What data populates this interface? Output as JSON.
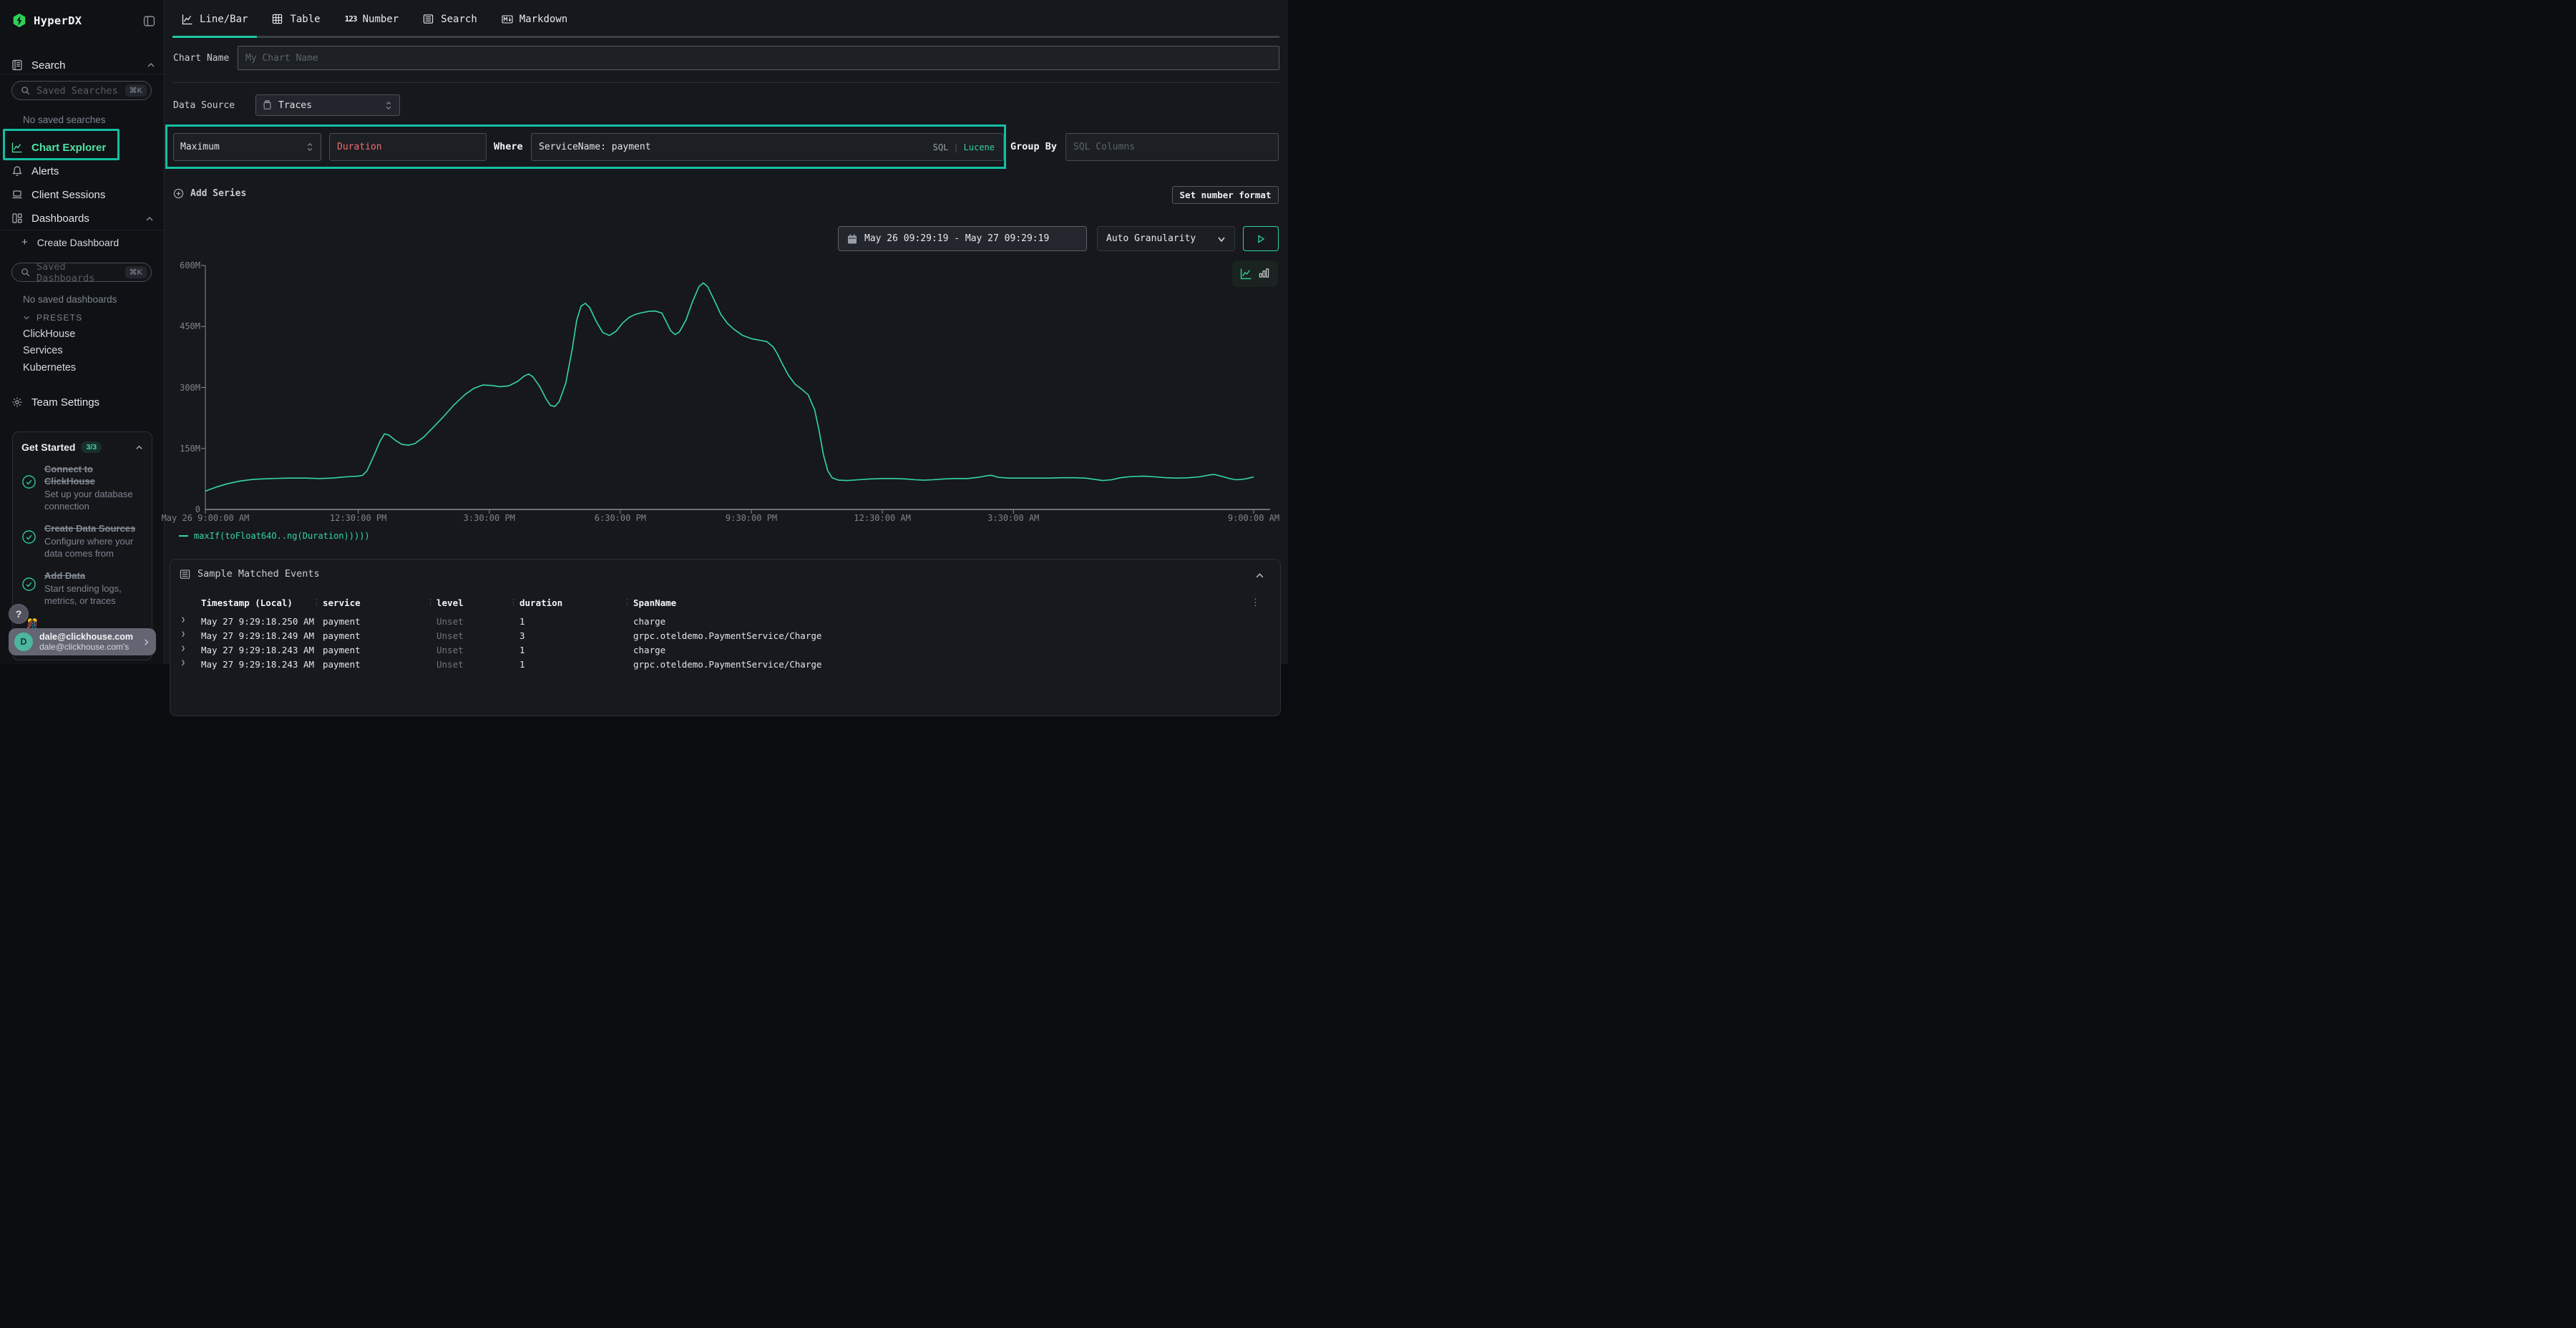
{
  "app": {
    "name": "HyperDX"
  },
  "sidebar": {
    "search_section": "Search",
    "saved_searches_placeholder": "Saved Searches",
    "saved_searches_shortcut": "⌘K",
    "no_saved_searches": "No saved searches",
    "nav": [
      {
        "label": "Chart Explorer",
        "icon": "line-chart-icon",
        "active": true
      },
      {
        "label": "Alerts",
        "icon": "bell-icon",
        "active": false
      },
      {
        "label": "Client Sessions",
        "icon": "laptop-icon",
        "active": false
      },
      {
        "label": "Dashboards",
        "icon": "dashboard-icon",
        "active": false,
        "expanded": true
      }
    ],
    "create_dashboard": "Create Dashboard",
    "saved_dashboards_placeholder": "Saved Dashboards",
    "saved_dashboards_shortcut": "⌘K",
    "no_saved_dashboards": "No saved dashboards",
    "presets_label": "PRESETS",
    "presets": [
      "ClickHouse",
      "Services",
      "Kubernetes"
    ],
    "team_settings": "Team Settings",
    "get_started": {
      "title": "Get Started",
      "badge": "3/3",
      "items": [
        {
          "title": "Connect to ClickHouse",
          "desc": "Set up your database connection",
          "done": true
        },
        {
          "title": "Create Data Sources",
          "desc": "Configure where your data comes from",
          "done": true
        },
        {
          "title": "Add Data",
          "desc": "Start sending logs, metrics, or traces",
          "done": true
        }
      ]
    },
    "help_label": "?",
    "confetti": "🎊",
    "user": {
      "initial": "D",
      "email": "dale@clickhouse.com",
      "subtitle": "dale@clickhouse.com's"
    }
  },
  "tabs": [
    {
      "label": "Line/Bar",
      "icon": "line-chart-icon",
      "active": true
    },
    {
      "label": "Table",
      "icon": "table-icon",
      "active": false
    },
    {
      "label": "Number",
      "icon": "number-icon",
      "active": false
    },
    {
      "label": "Search",
      "icon": "list-icon",
      "active": false
    },
    {
      "label": "Markdown",
      "icon": "markdown-icon",
      "active": false
    }
  ],
  "chart_form": {
    "chart_name_label": "Chart Name",
    "chart_name_placeholder": "My Chart Name",
    "data_source_label": "Data Source",
    "data_source_value": "Traces",
    "aggregation_value": "Maximum",
    "field_value": "Duration",
    "where_label": "Where",
    "where_value": "ServiceName: payment",
    "sql_toggle": "SQL",
    "lucene_toggle": "Lucene",
    "group_by_label": "Group By",
    "group_by_placeholder": "SQL Columns",
    "add_series_label": "Add Series",
    "set_number_format_label": "Set number format"
  },
  "controls": {
    "date_range": "May 26 09:29:19 - May 27 09:29:19",
    "granularity": "Auto Granularity"
  },
  "chart_data": {
    "type": "line",
    "title": "",
    "grid": false,
    "legend_position": "bottom-left",
    "ylim": [
      0,
      600
    ],
    "y_unit_suffix": "M",
    "y_ticks": [
      {
        "value": 0,
        "label": "0"
      },
      {
        "value": 150,
        "label": "150M"
      },
      {
        "value": 300,
        "label": "300M"
      },
      {
        "value": 450,
        "label": "450M"
      },
      {
        "value": 600,
        "label": "600M"
      }
    ],
    "x_range_hours": [
      0,
      24
    ],
    "x_ticks": [
      {
        "hour": 0,
        "label": "May 26 9:00:00 AM"
      },
      {
        "hour": 3.5,
        "label": "12:30:00 PM"
      },
      {
        "hour": 6.5,
        "label": "3:30:00 PM"
      },
      {
        "hour": 9.5,
        "label": "6:30:00 PM"
      },
      {
        "hour": 12.5,
        "label": "9:30:00 PM"
      },
      {
        "hour": 15.5,
        "label": "12:30:00 AM"
      },
      {
        "hour": 18.5,
        "label": "3:30:00 AM"
      },
      {
        "hour": 24,
        "label": "9:00:00 AM"
      }
    ],
    "series": [
      {
        "name": "maxIf(toFloat64O..ng(Duration)))))",
        "color": "#34d7a2",
        "points_hour_valueM": [
          [
            0,
            45
          ],
          [
            0.25,
            55
          ],
          [
            0.5,
            63
          ],
          [
            0.8,
            70
          ],
          [
            1.1,
            74
          ],
          [
            1.5,
            76
          ],
          [
            1.9,
            77
          ],
          [
            2.3,
            77
          ],
          [
            2.6,
            76
          ],
          [
            2.9,
            77
          ],
          [
            3.1,
            79
          ],
          [
            3.3,
            81
          ],
          [
            3.5,
            82
          ],
          [
            3.6,
            84
          ],
          [
            3.7,
            95
          ],
          [
            3.85,
            130
          ],
          [
            4.0,
            168
          ],
          [
            4.1,
            186
          ],
          [
            4.2,
            183
          ],
          [
            4.35,
            170
          ],
          [
            4.5,
            160
          ],
          [
            4.65,
            158
          ],
          [
            4.8,
            162
          ],
          [
            5.0,
            178
          ],
          [
            5.2,
            200
          ],
          [
            5.45,
            228
          ],
          [
            5.7,
            258
          ],
          [
            5.95,
            283
          ],
          [
            6.15,
            298
          ],
          [
            6.35,
            306
          ],
          [
            6.55,
            305
          ],
          [
            6.75,
            302
          ],
          [
            6.95,
            304
          ],
          [
            7.15,
            315
          ],
          [
            7.3,
            328
          ],
          [
            7.4,
            333
          ],
          [
            7.5,
            326
          ],
          [
            7.65,
            303
          ],
          [
            7.8,
            272
          ],
          [
            7.9,
            256
          ],
          [
            8.0,
            253
          ],
          [
            8.1,
            265
          ],
          [
            8.25,
            310
          ],
          [
            8.4,
            395
          ],
          [
            8.5,
            465
          ],
          [
            8.6,
            500
          ],
          [
            8.7,
            507
          ],
          [
            8.8,
            496
          ],
          [
            8.95,
            462
          ],
          [
            9.1,
            435
          ],
          [
            9.25,
            428
          ],
          [
            9.4,
            438
          ],
          [
            9.55,
            458
          ],
          [
            9.7,
            472
          ],
          [
            9.85,
            480
          ],
          [
            10.0,
            484
          ],
          [
            10.15,
            487
          ],
          [
            10.3,
            488
          ],
          [
            10.45,
            483
          ],
          [
            10.55,
            462
          ],
          [
            10.65,
            440
          ],
          [
            10.75,
            430
          ],
          [
            10.85,
            436
          ],
          [
            11.0,
            465
          ],
          [
            11.15,
            510
          ],
          [
            11.3,
            548
          ],
          [
            11.4,
            557
          ],
          [
            11.5,
            548
          ],
          [
            11.65,
            515
          ],
          [
            11.8,
            480
          ],
          [
            11.95,
            458
          ],
          [
            12.1,
            443
          ],
          [
            12.3,
            428
          ],
          [
            12.5,
            420
          ],
          [
            12.7,
            416
          ],
          [
            12.85,
            413
          ],
          [
            13.0,
            400
          ],
          [
            13.1,
            382
          ],
          [
            13.2,
            360
          ],
          [
            13.35,
            330
          ],
          [
            13.5,
            308
          ],
          [
            13.65,
            296
          ],
          [
            13.8,
            282
          ],
          [
            13.95,
            245
          ],
          [
            14.05,
            195
          ],
          [
            14.15,
            135
          ],
          [
            14.25,
            95
          ],
          [
            14.35,
            78
          ],
          [
            14.5,
            72
          ],
          [
            14.7,
            71
          ],
          [
            14.95,
            73
          ],
          [
            15.2,
            75
          ],
          [
            15.5,
            76
          ],
          [
            15.8,
            76
          ],
          [
            16.05,
            75
          ],
          [
            16.25,
            73
          ],
          [
            16.45,
            72
          ],
          [
            16.65,
            73
          ],
          [
            16.9,
            75
          ],
          [
            17.15,
            76
          ],
          [
            17.45,
            76
          ],
          [
            17.7,
            79
          ],
          [
            17.9,
            83
          ],
          [
            18.0,
            84
          ],
          [
            18.15,
            79
          ],
          [
            18.4,
            77
          ],
          [
            18.7,
            77
          ],
          [
            19.0,
            77
          ],
          [
            19.3,
            77
          ],
          [
            19.6,
            78
          ],
          [
            19.9,
            78
          ],
          [
            20.15,
            77
          ],
          [
            20.35,
            74
          ],
          [
            20.55,
            71
          ],
          [
            20.75,
            73
          ],
          [
            20.95,
            78
          ],
          [
            21.2,
            81
          ],
          [
            21.5,
            82
          ],
          [
            21.75,
            80
          ],
          [
            22.0,
            78
          ],
          [
            22.25,
            77
          ],
          [
            22.5,
            78
          ],
          [
            22.75,
            80
          ],
          [
            23.0,
            85
          ],
          [
            23.1,
            86
          ],
          [
            23.25,
            82
          ],
          [
            23.45,
            76
          ],
          [
            23.6,
            73
          ],
          [
            23.75,
            74
          ],
          [
            23.9,
            77
          ],
          [
            24,
            80
          ]
        ]
      }
    ]
  },
  "events": {
    "title": "Sample Matched Events",
    "columns": [
      "Timestamp (Local)",
      "service",
      "level",
      "duration",
      "SpanName"
    ],
    "rows": [
      {
        "timestamp": "May 27 9:29:18.250 AM",
        "service": "payment",
        "level": "Unset",
        "duration": "1",
        "span": "charge"
      },
      {
        "timestamp": "May 27 9:29:18.249 AM",
        "service": "payment",
        "level": "Unset",
        "duration": "3",
        "span": "grpc.oteldemo.PaymentService/Charge"
      },
      {
        "timestamp": "May 27 9:29:18.243 AM",
        "service": "payment",
        "level": "Unset",
        "duration": "1",
        "span": "charge"
      },
      {
        "timestamp": "May 27 9:29:18.243 AM",
        "service": "payment",
        "level": "Unset",
        "duration": "1",
        "span": "grpc.oteldemo.PaymentService/Charge"
      }
    ]
  }
}
